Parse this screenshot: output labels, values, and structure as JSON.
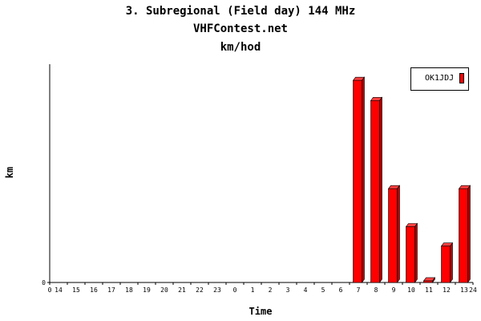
{
  "chart_data": {
    "type": "bar",
    "title": "3. Subregional (Field day) 144 MHz",
    "subtitle": "VHFContest.net",
    "unit_line": "km/hod",
    "xlabel": "Time",
    "ylabel": "km",
    "y_ticks": [
      "0"
    ],
    "categories": [
      "14",
      "15",
      "16",
      "17",
      "18",
      "19",
      "20",
      "21",
      "22",
      "23",
      "0",
      "1",
      "2",
      "3",
      "4",
      "5",
      "6",
      "7",
      "8",
      "9",
      "10",
      "11",
      "12",
      "13"
    ],
    "x_edge_labels": [
      "0",
      "24"
    ],
    "series": [
      {
        "name": "OK1JDJ",
        "color": "#ff0000",
        "values": [
          0,
          0,
          0,
          0,
          0,
          0,
          0,
          0,
          0,
          0,
          0,
          0,
          0,
          0,
          0,
          0,
          0,
          250,
          225,
          116,
          69,
          2,
          45,
          116
        ]
      }
    ],
    "ylim": [
      0,
      270
    ],
    "legend_position": "top-right",
    "grid": false
  }
}
